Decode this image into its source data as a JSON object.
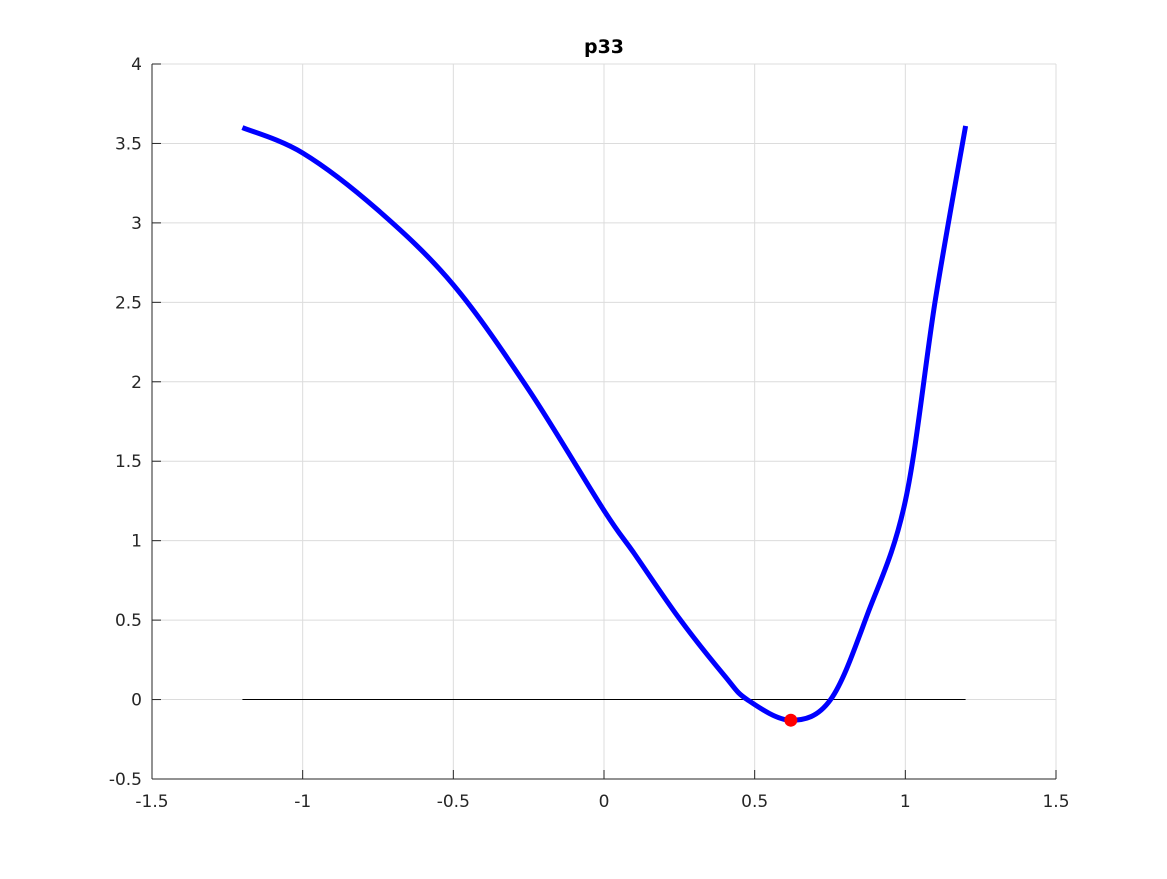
{
  "chart_data": {
    "type": "line",
    "title": "p33",
    "xlabel": "",
    "ylabel": "",
    "xlim": [
      -1.5,
      1.5
    ],
    "ylim": [
      -0.5,
      4
    ],
    "grid": true,
    "xticks": [
      "-1.5",
      "-1",
      "-0.5",
      "0",
      "0.5",
      "1",
      "1.5"
    ],
    "yticks": [
      "-0.5",
      "0",
      "0.5",
      "1",
      "1.5",
      "2",
      "2.5",
      "3",
      "3.5",
      "4"
    ],
    "series": [
      {
        "color": "#0000ff",
        "x": [
          -1.2,
          -1.0,
          -0.75,
          -0.5,
          -0.25,
          0,
          0.1,
          0.25,
          0.4,
          0.475,
          0.62,
          0.752,
          0.875,
          1.0,
          1.1,
          1.2
        ],
        "y": [
          3.6,
          3.44,
          3.08,
          2.61,
          1.95,
          1.19,
          0.92,
          0.51,
          0.15,
          0.0,
          -0.13,
          0.0,
          0.54,
          1.25,
          2.52,
          3.61
        ]
      },
      {
        "color": "#000000",
        "x": [
          -1.2,
          1.2
        ],
        "y": [
          0,
          0
        ]
      }
    ],
    "markers": [
      {
        "x": 0.62,
        "y": -0.13,
        "color": "#ff0000"
      }
    ]
  }
}
